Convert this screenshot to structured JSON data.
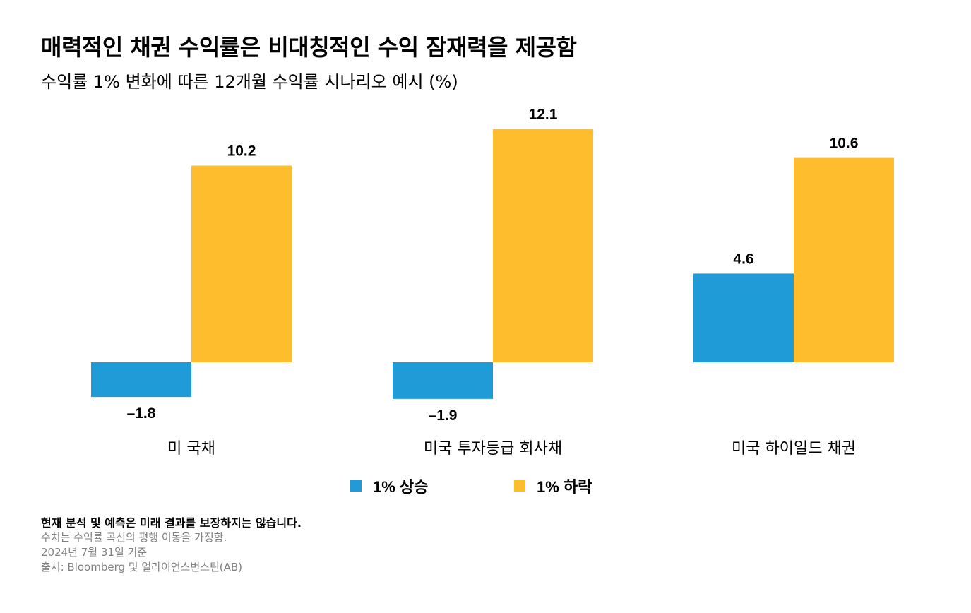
{
  "header": {
    "title": "매력적인 채권 수익률은 비대칭적인 수익 잠재력을 제공함",
    "subtitle": "수익률 1% 변화에 따른 12개월 수익률 시나리오 예시 (%)"
  },
  "chart_data": {
    "type": "bar",
    "categories": [
      "미 국채",
      "미국 투자등급 회사채",
      "미국 하이일드 채권"
    ],
    "series": [
      {
        "name": "1% 상승",
        "values": [
          -1.8,
          -1.9,
          4.6
        ],
        "labels": [
          "–1.8",
          "–1.9",
          "4.6"
        ],
        "color": "#1f9bd7"
      },
      {
        "name": "1% 하락",
        "values": [
          10.2,
          12.1,
          10.6
        ],
        "labels": [
          "10.2",
          "12.1",
          "10.6"
        ],
        "color": "#fdbd2c"
      }
    ],
    "ylim": [
      -2,
      12.1
    ],
    "grid": false,
    "legend_position": "bottom"
  },
  "footer": {
    "disclaimer": "현재 분석 및 예측은 미래 결과를 보장하지는 않습니다.",
    "notes": [
      "수치는 수익률 곡선의 평행 이동을 가정함.",
      "2024년 7월 31일 기준",
      "출처: Bloomberg 및 얼라이언스번스틴(AB)"
    ]
  }
}
